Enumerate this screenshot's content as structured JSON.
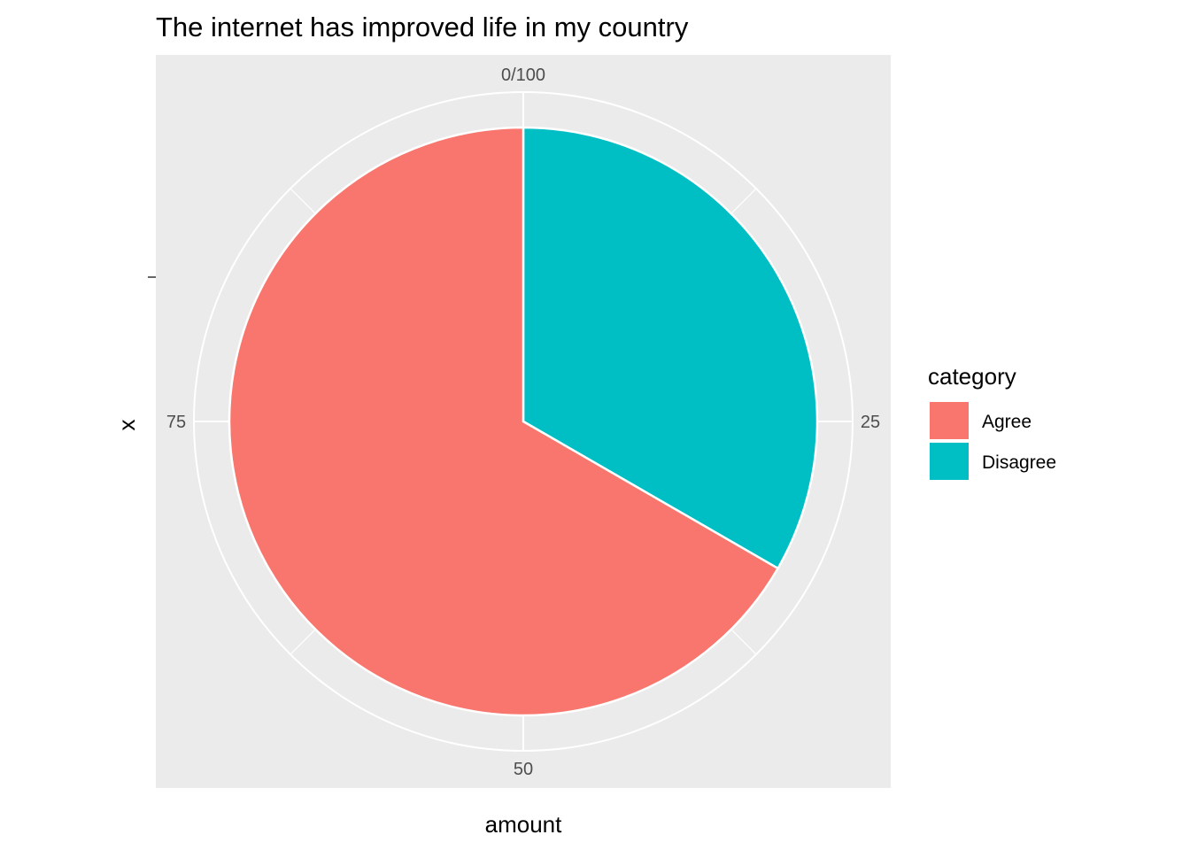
{
  "chart_data": {
    "type": "pie",
    "title": "The internet has improved life in my country",
    "xlabel": "amount",
    "ylabel": "x",
    "categories": [
      "Agree",
      "Disagree"
    ],
    "values": [
      66.67,
      33.33
    ],
    "colors": {
      "Agree": "#F8766D",
      "Disagree": "#00BFC4"
    },
    "theta_ticks": [
      {
        "value": 0,
        "label": "0/100"
      },
      {
        "value": 25,
        "label": "25"
      },
      {
        "value": 50,
        "label": "50"
      },
      {
        "value": 75,
        "label": "75"
      }
    ],
    "theta_range": [
      0,
      100
    ],
    "grid": true,
    "panel_background": "#EBEBEB",
    "grid_color": "#FFFFFF",
    "legend": {
      "title": "category",
      "placement": "right",
      "entries": [
        "Agree",
        "Disagree"
      ]
    }
  }
}
